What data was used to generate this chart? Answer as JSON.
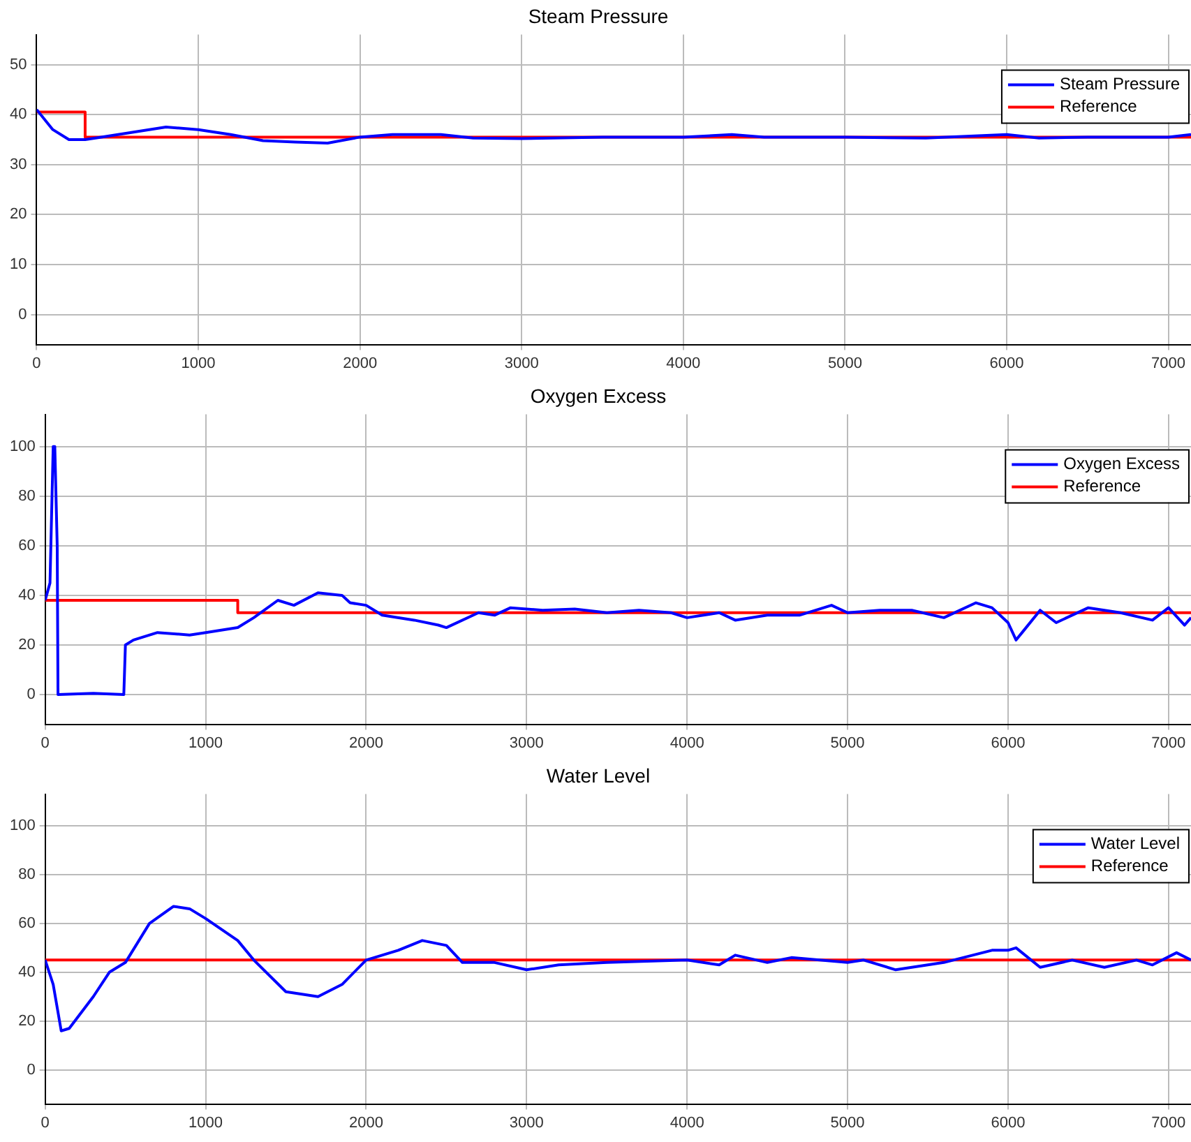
{
  "chart_data": [
    {
      "type": "line",
      "title": "Steam Pressure",
      "xlim": [
        0,
        7140
      ],
      "xticks": [
        0,
        1000,
        2000,
        3000,
        4000,
        5000,
        6000,
        7000
      ],
      "ylim": [
        -6,
        56
      ],
      "yticks": [
        0,
        10,
        20,
        30,
        40,
        50
      ],
      "grid": true,
      "legend": "top right",
      "series": [
        {
          "name": "Steam Pressure",
          "color": "#0000ff",
          "x": [
            0,
            100,
            200,
            300,
            400,
            600,
            800,
            1000,
            1200,
            1400,
            1600,
            1800,
            2000,
            2200,
            2500,
            2700,
            3000,
            3500,
            4000,
            4300,
            4500,
            5000,
            5500,
            6000,
            6200,
            6500,
            7000,
            7140
          ],
          "values": [
            41,
            37,
            35,
            35,
            35.5,
            36.5,
            37.5,
            37,
            36,
            34.8,
            34.5,
            34.3,
            35.5,
            36,
            36,
            35.3,
            35.2,
            35.5,
            35.5,
            36,
            35.5,
            35.5,
            35.3,
            36,
            35.3,
            35.5,
            35.5,
            36
          ]
        },
        {
          "name": "Reference",
          "type": "step",
          "color": "#ff0000",
          "x": [
            0,
            300,
            7140
          ],
          "values": [
            40.5,
            35.5,
            35.5
          ]
        }
      ]
    },
    {
      "type": "line",
      "title": "Oxygen Excess",
      "xlim": [
        0,
        7140
      ],
      "xticks": [
        0,
        1000,
        2000,
        3000,
        4000,
        5000,
        6000,
        7000
      ],
      "ylim": [
        -12,
        113
      ],
      "yticks": [
        0,
        20,
        40,
        60,
        80,
        100
      ],
      "grid": true,
      "legend": "top right",
      "series": [
        {
          "name": "Oxygen Excess",
          "color": "#0000ff",
          "x": [
            0,
            30,
            50,
            60,
            75,
            80,
            300,
            490,
            500,
            550,
            700,
            900,
            1000,
            1200,
            1300,
            1450,
            1550,
            1700,
            1850,
            1900,
            2000,
            2100,
            2300,
            2450,
            2500,
            2700,
            2800,
            2900,
            3100,
            3300,
            3500,
            3700,
            3900,
            4000,
            4200,
            4300,
            4500,
            4700,
            4900,
            5000,
            5200,
            5400,
            5600,
            5800,
            5900,
            6000,
            6050,
            6100,
            6200,
            6300,
            6500,
            6700,
            6900,
            7000,
            7100,
            7140
          ],
          "values": [
            38,
            45,
            100,
            100,
            60,
            0,
            0.5,
            0,
            20,
            22,
            25,
            24,
            25,
            27,
            31,
            38,
            36,
            41,
            40,
            37,
            36,
            32,
            30,
            28,
            27,
            33,
            32,
            35,
            34,
            34.5,
            33,
            34,
            33,
            31,
            33,
            30,
            32,
            32,
            36,
            33,
            34,
            34,
            31,
            37,
            35,
            29,
            22,
            26,
            34,
            29,
            35,
            33,
            30,
            35,
            28,
            31
          ]
        },
        {
          "name": "Reference",
          "type": "step",
          "color": "#ff0000",
          "x": [
            0,
            1200,
            7140
          ],
          "values": [
            38,
            33,
            33
          ]
        }
      ]
    },
    {
      "type": "line",
      "title": "Water Level",
      "xlim": [
        0,
        7140
      ],
      "xticks": [
        0,
        1000,
        2000,
        3000,
        4000,
        5000,
        6000,
        7000
      ],
      "ylim": [
        -14,
        113
      ],
      "yticks": [
        0,
        20,
        40,
        60,
        80,
        100
      ],
      "grid": true,
      "legend": "top right",
      "series": [
        {
          "name": "Water Level",
          "color": "#0000ff",
          "x": [
            0,
            50,
            100,
            150,
            300,
            400,
            500,
            650,
            800,
            900,
            1000,
            1200,
            1300,
            1500,
            1700,
            1850,
            2000,
            2200,
            2350,
            2500,
            2600,
            2800,
            3000,
            3200,
            3500,
            4000,
            4200,
            4300,
            4500,
            4650,
            5000,
            5100,
            5300,
            5600,
            5900,
            6000,
            6050,
            6200,
            6400,
            6600,
            6800,
            6900,
            7050,
            7140
          ],
          "values": [
            45,
            35,
            16,
            17,
            30,
            40,
            44,
            60,
            67,
            66,
            62,
            53,
            45,
            32,
            30,
            35,
            45,
            49,
            53,
            51,
            44,
            44,
            41,
            43,
            44,
            45,
            43,
            47,
            44,
            46,
            44,
            45,
            41,
            44,
            49,
            49,
            50,
            42,
            45,
            42,
            45,
            43,
            48,
            45
          ]
        },
        {
          "name": "Reference",
          "type": "step",
          "color": "#ff0000",
          "x": [
            0,
            7140
          ],
          "values": [
            45,
            45
          ]
        }
      ]
    }
  ]
}
